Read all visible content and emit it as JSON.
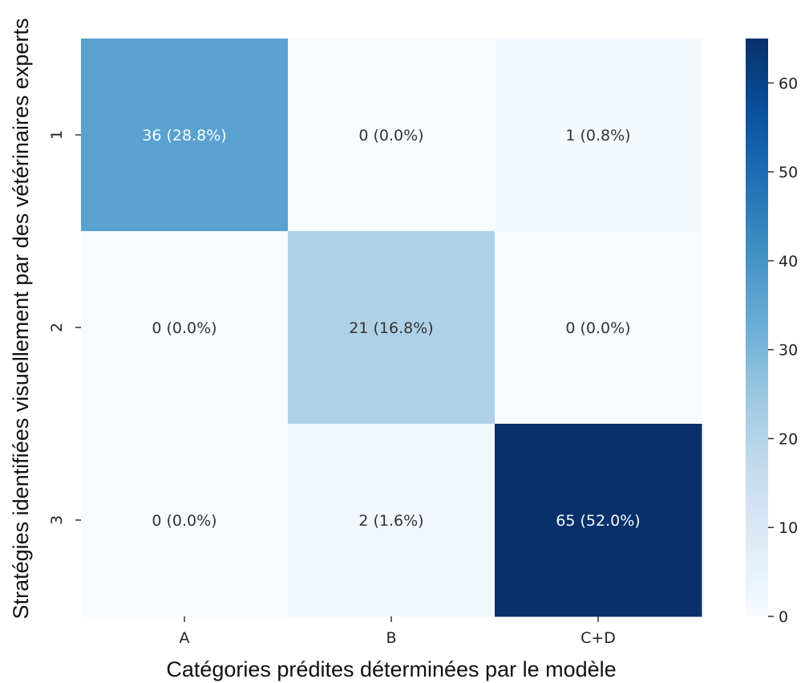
{
  "chart_data": {
    "type": "heatmap",
    "xlabel": "Catégories prédites déterminées par le modèle",
    "ylabel": "Stratégies identifiées visuellement par des vétérinaires experts",
    "x_categories": [
      "A",
      "B",
      "C+D"
    ],
    "y_categories": [
      "1",
      "2",
      "3"
    ],
    "values": [
      [
        36,
        0,
        1
      ],
      [
        0,
        21,
        0
      ],
      [
        0,
        2,
        65
      ]
    ],
    "cell_labels": [
      [
        "36 (28.8%)",
        "0 (0.0%)",
        "1 (0.8%)"
      ],
      [
        "0 (0.0%)",
        "21 (16.8%)",
        "0 (0.0%)"
      ],
      [
        "0 (0.0%)",
        "2 (1.6%)",
        "65 (52.0%)"
      ]
    ],
    "colormap": "Blues",
    "colorbar": {
      "range": [
        0,
        65
      ],
      "ticks": [
        0,
        10,
        20,
        30,
        40,
        50,
        60
      ],
      "tick_labels": [
        "0",
        "10",
        "20",
        "30",
        "40",
        "50",
        "60"
      ]
    },
    "colors": {
      "low": "#f5fafe",
      "high": "#0b3068",
      "light_text": "#f7fbff",
      "dark_text": "#333333"
    }
  }
}
